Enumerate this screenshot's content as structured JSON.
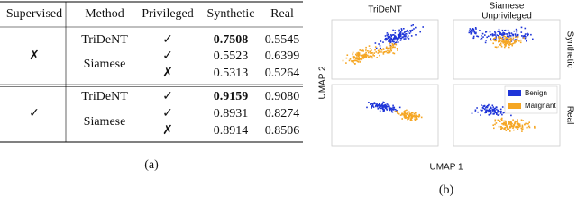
{
  "table": {
    "header": [
      "Supervised",
      "Method",
      "Privileged",
      "Synthetic",
      "Real"
    ],
    "groups": [
      {
        "supervised": "✗",
        "methods": [
          {
            "name": "TriDeNT",
            "rows": [
              {
                "privileged": "✓",
                "synthetic": "0.7508",
                "real": "0.5545"
              }
            ]
          },
          {
            "name": "Siamese",
            "rows": [
              {
                "privileged": "✓",
                "synthetic": "0.5523",
                "real": "0.6399"
              },
              {
                "privileged": "✗",
                "synthetic": "0.5313",
                "real": "0.5264"
              }
            ]
          }
        ]
      },
      {
        "supervised": "✓",
        "methods": [
          {
            "name": "TriDeNT",
            "rows": [
              {
                "privileged": "✓",
                "synthetic": "0.9159",
                "real": "0.9080"
              }
            ]
          },
          {
            "name": "Siamese",
            "rows": [
              {
                "privileged": "✓",
                "synthetic": "0.8931",
                "real": "0.8274"
              },
              {
                "privileged": "✗",
                "synthetic": "0.8914",
                "real": "0.8506"
              }
            ]
          }
        ]
      }
    ],
    "caption": "(a)"
  },
  "figure": {
    "column_titles": [
      "TriDeNT",
      "Siamese",
      "Unprivileged"
    ],
    "row_titles": [
      "Synthetic",
      "Real"
    ],
    "x_label": "UMAP 1",
    "y_label": "UMAP 2",
    "legend": [
      {
        "name": "Benign",
        "color": "#1f35d8"
      },
      {
        "name": "Malignant",
        "color": "#f5a623"
      }
    ],
    "caption": "(b)"
  }
}
